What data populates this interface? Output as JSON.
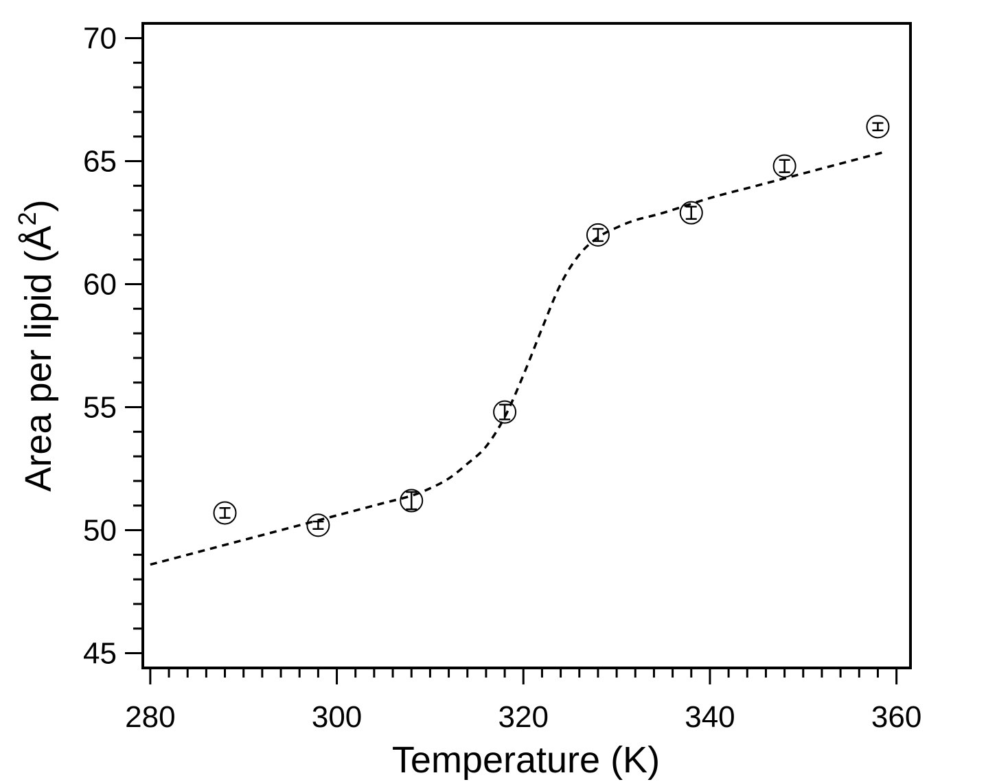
{
  "chart_data": {
    "type": "scatter",
    "xlabel": "Temperature (K)",
    "ylabel": "Area per lipid (Å²)",
    "ylabel_main": "Area per lipid (Å",
    "ylabel_sup": "2",
    "ylabel_close": ")",
    "xlim": [
      279.2,
      361.5
    ],
    "ylim": [
      44.4,
      70.6
    ],
    "xticks_major": [
      280,
      300,
      320,
      340,
      360
    ],
    "xtick_labels": [
      "280",
      "300",
      "320",
      "340",
      "360"
    ],
    "xticks_minor_step": 2,
    "yticks_major": [
      45,
      50,
      55,
      60,
      65,
      70
    ],
    "ytick_labels": [
      "45",
      "50",
      "55",
      "60",
      "65",
      "70"
    ],
    "yticks_minor_step": 1,
    "grid": false,
    "series": [
      {
        "kind": "points",
        "marker": "open-circle-with-errorbar",
        "x": [
          288,
          298,
          308,
          318,
          328,
          338,
          348,
          358
        ],
        "y": [
          50.7,
          50.2,
          51.2,
          54.8,
          62.0,
          62.9,
          64.8,
          66.4
        ],
        "yerr": [
          0.2,
          0.15,
          0.35,
          0.3,
          0.25,
          0.25,
          0.25,
          0.15
        ]
      },
      {
        "kind": "fit",
        "style": "dashed",
        "x": [
          280,
          285,
          290,
          295,
          300,
          305,
          308,
          310,
          312,
          314,
          316,
          318,
          320,
          322,
          324,
          326,
          328,
          330,
          332,
          335,
          340,
          345,
          350,
          355,
          359
        ],
        "y": [
          48.6,
          49.1,
          49.6,
          50.1,
          50.6,
          51.1,
          51.4,
          51.7,
          52.1,
          52.7,
          53.4,
          54.6,
          56.3,
          58.2,
          60.0,
          61.2,
          61.9,
          62.3,
          62.6,
          62.9,
          63.5,
          64.0,
          64.5,
          65.0,
          65.4
        ]
      }
    ]
  }
}
